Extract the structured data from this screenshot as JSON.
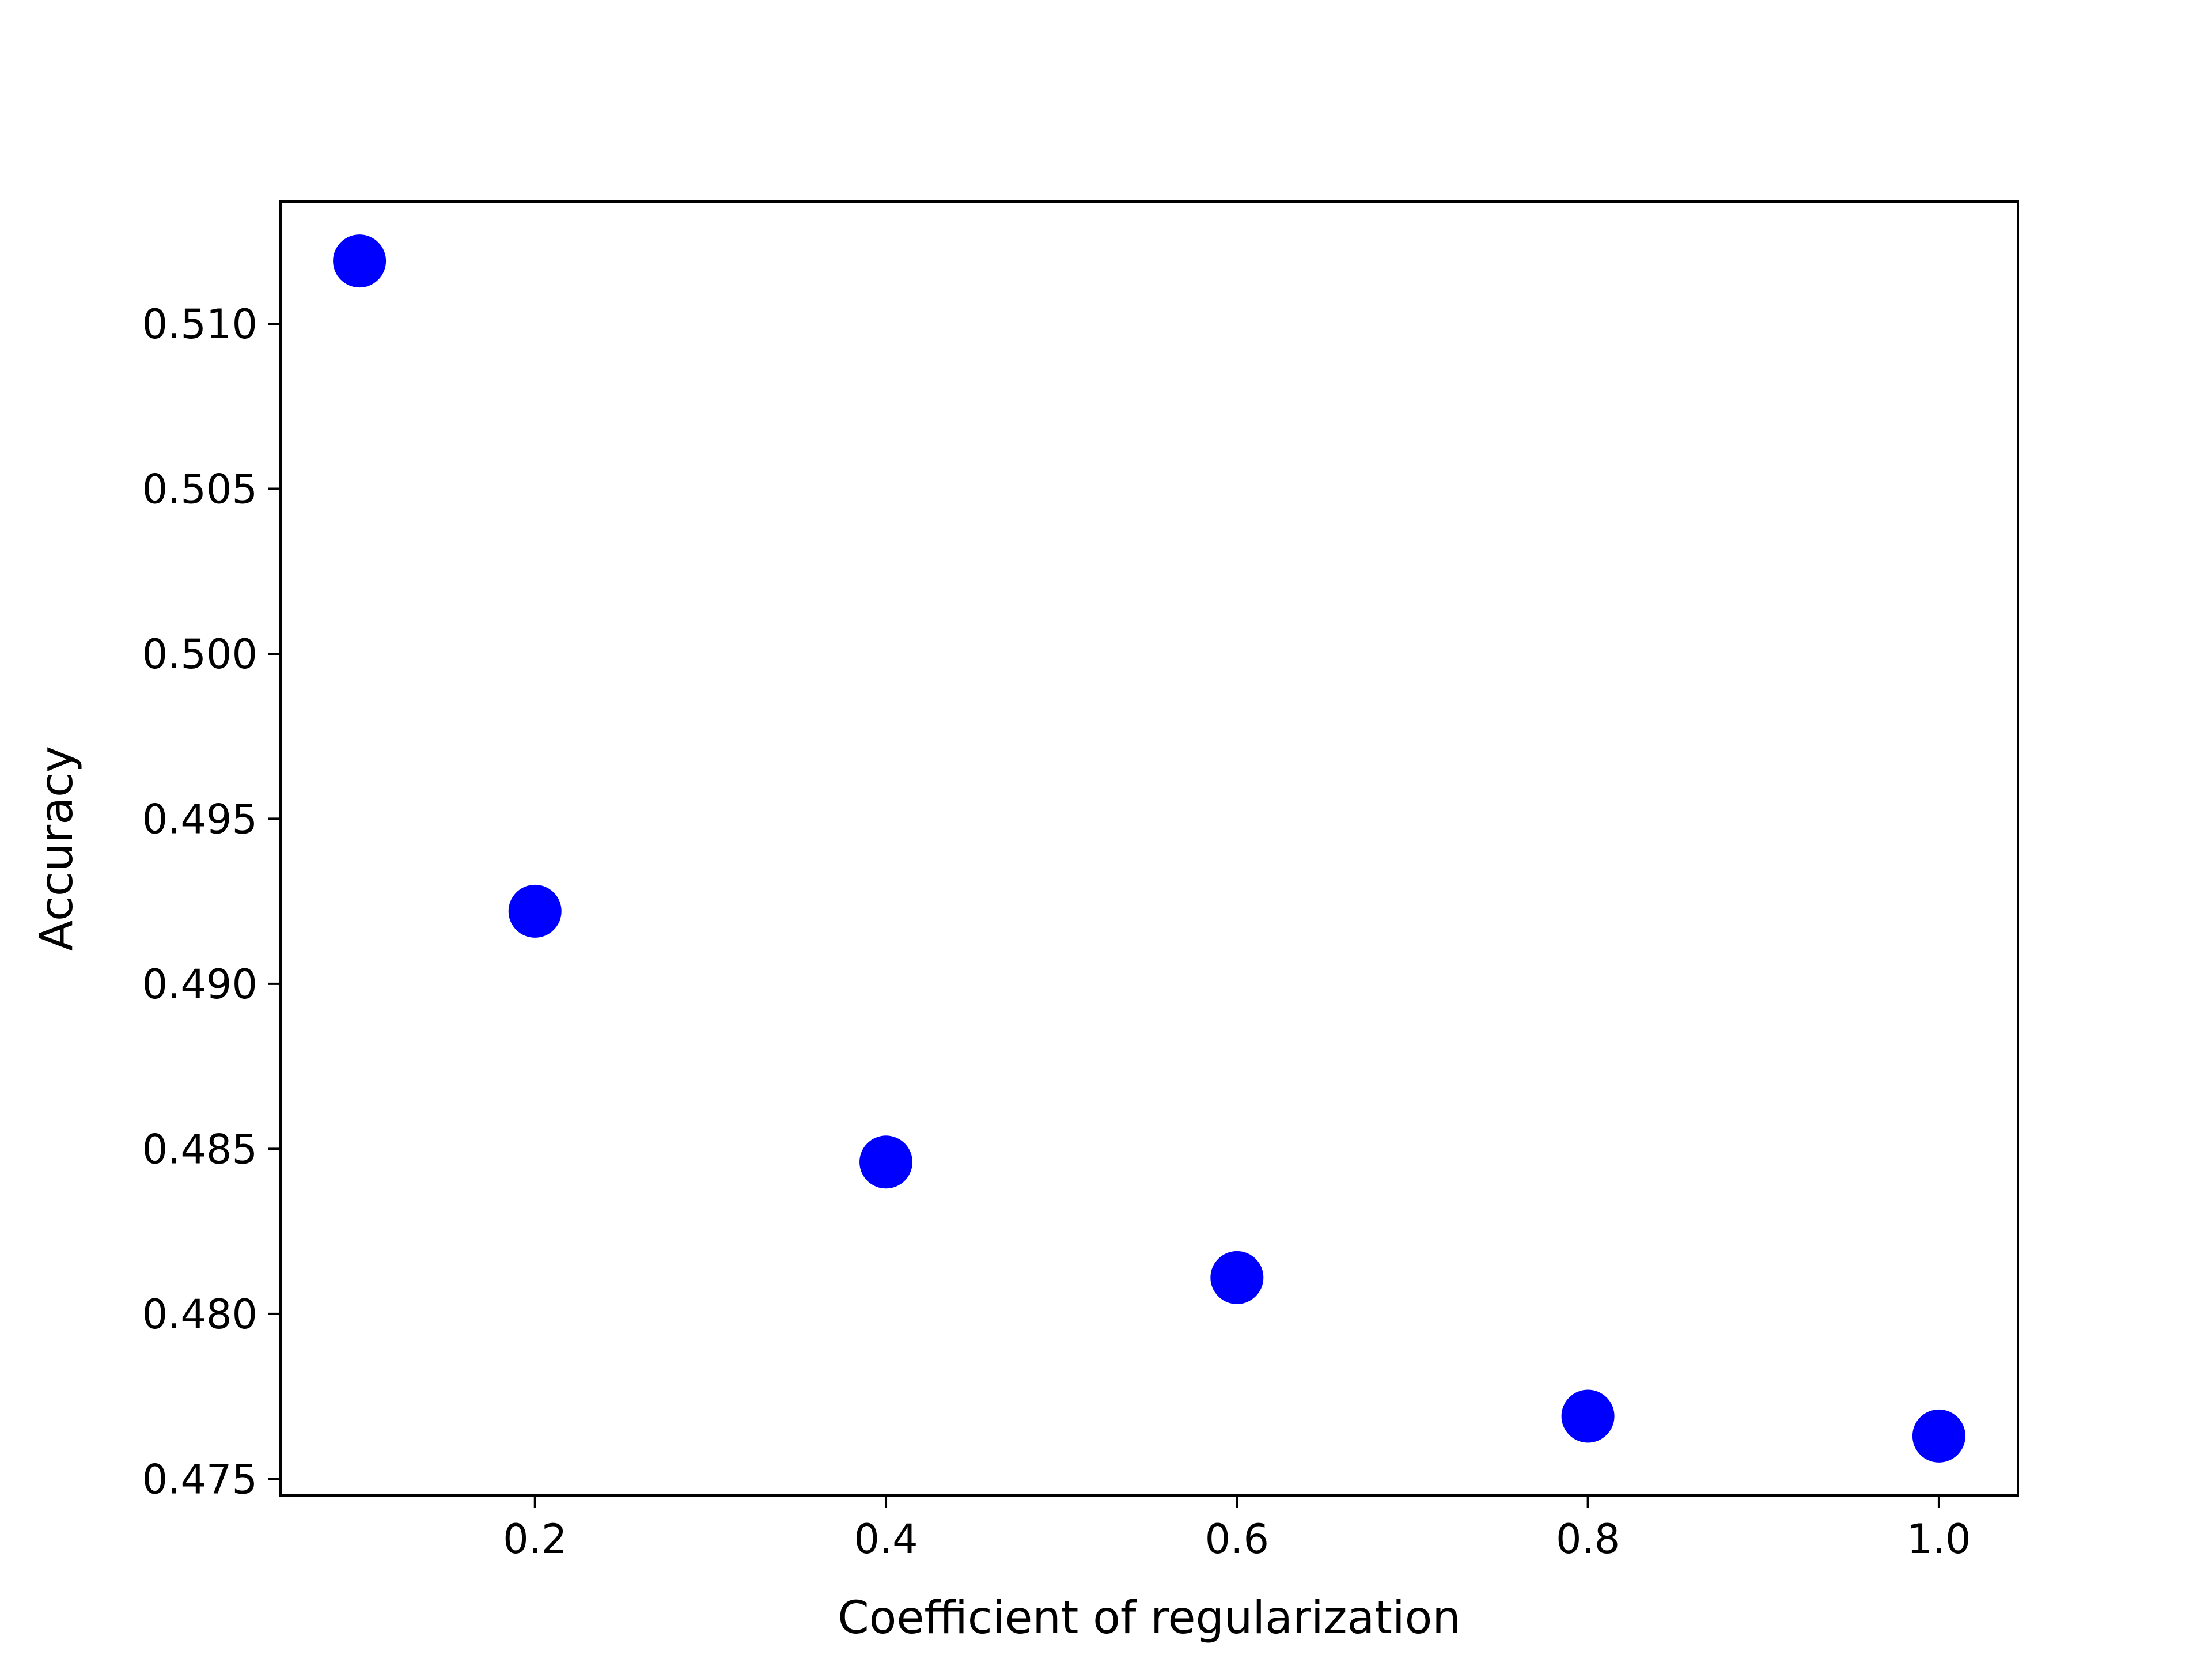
{
  "chart_data": {
    "type": "scatter",
    "title": "",
    "xlabel": "Coefficient of regularization",
    "ylabel": "Accuracy",
    "xlim": [
      0.055,
      1.045
    ],
    "ylim": [
      0.4745,
      0.5137
    ],
    "x_ticks": [
      0.2,
      0.4,
      0.6,
      0.8,
      1.0
    ],
    "x_tick_labels": [
      "0.2",
      "0.4",
      "0.6",
      "0.8",
      "1.0"
    ],
    "y_ticks": [
      0.475,
      0.48,
      0.485,
      0.49,
      0.495,
      0.5,
      0.505,
      0.51
    ],
    "y_tick_labels": [
      "0.475",
      "0.480",
      "0.485",
      "0.490",
      "0.495",
      "0.500",
      "0.505",
      "0.510"
    ],
    "grid": false,
    "series": [
      {
        "color": "#0000ff",
        "x": [
          0.1,
          0.2,
          0.4,
          0.6,
          0.8,
          1.0
        ],
        "y": [
          0.5119,
          0.4922,
          0.4846,
          0.4811,
          0.4769,
          0.4763
        ]
      }
    ]
  }
}
